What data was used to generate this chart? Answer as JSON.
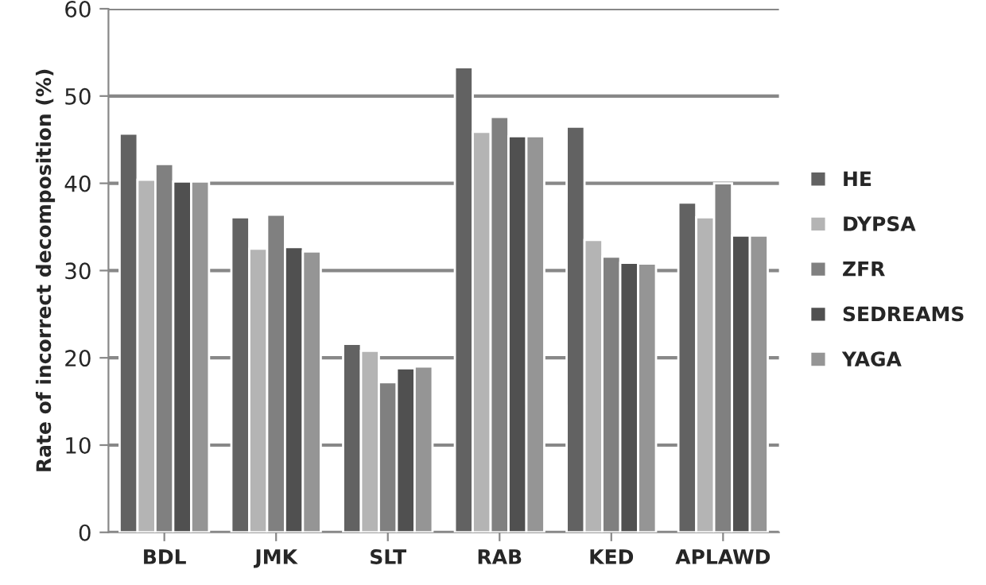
{
  "chart_data": {
    "type": "bar",
    "ylabel": "Rate of incorrect decomposition (%)",
    "categories": [
      "BDL",
      "JMK",
      "SLT",
      "RAB",
      "KED",
      "APLAWD"
    ],
    "series": [
      {
        "name": "HE",
        "color": "#626262",
        "values": [
          45.7,
          36.1,
          21.6,
          53.3,
          46.5,
          37.8
        ]
      },
      {
        "name": "DYPSA",
        "color": "#b4b4b4",
        "values": [
          40.4,
          32.5,
          20.8,
          45.9,
          33.5,
          36.1
        ]
      },
      {
        "name": "ZFR",
        "color": "#808080",
        "values": [
          42.2,
          36.4,
          17.2,
          47.6,
          31.6,
          40.0
        ]
      },
      {
        "name": "SEDREAMS",
        "color": "#505050",
        "values": [
          40.2,
          32.7,
          18.8,
          45.4,
          30.9,
          34.0
        ]
      },
      {
        "name": "YAGA",
        "color": "#959595",
        "values": [
          40.2,
          32.2,
          19.0,
          45.4,
          30.8,
          34.0
        ]
      }
    ],
    "ylim": [
      0,
      60
    ],
    "yticks": [
      0,
      10,
      20,
      30,
      40,
      50,
      60
    ],
    "grid": "y",
    "legend": "right"
  }
}
